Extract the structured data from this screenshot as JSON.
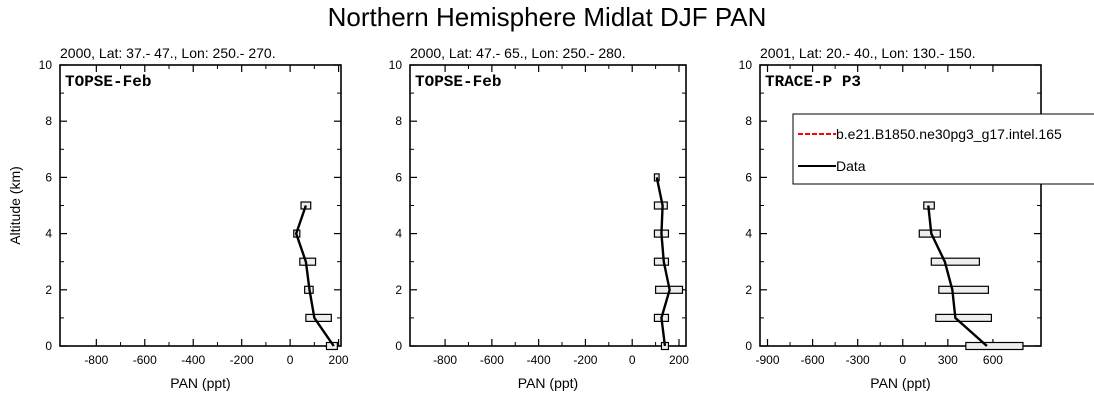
{
  "figure": {
    "title": "Northern Hemisphere Midlat DJF PAN"
  },
  "chart_data": [
    {
      "type": "line",
      "panel_title": "2000, Lat: 37.- 47., Lon: 250.- 270.",
      "campaign": "TOPSE-Feb",
      "xlabel": "PAN (ppt)",
      "ylabel": "Altitude (km)",
      "xlim": [
        -950,
        210
      ],
      "ylim": [
        0,
        10
      ],
      "xticks": [
        -800,
        -600,
        -400,
        -200,
        0,
        200
      ],
      "xtick_labels": [
        "-800",
        "-600",
        "-400",
        "-200",
        "0",
        "200"
      ],
      "yticks": [
        0,
        2,
        4,
        6,
        8,
        10
      ],
      "ytick_labels": [
        "0",
        "2",
        "4",
        "6",
        "8",
        "10"
      ],
      "series": [
        {
          "name": "Data",
          "color": "#000000",
          "x": [
            180,
            100,
            80,
            65,
            25,
            65
          ],
          "y": [
            0,
            1,
            2,
            3,
            4,
            5
          ],
          "box_low": [
            150,
            65,
            60,
            40,
            15,
            45
          ],
          "box_high": [
            195,
            170,
            95,
            105,
            40,
            85
          ]
        }
      ]
    },
    {
      "type": "line",
      "panel_title": "2000, Lat: 47.- 65., Lon: 250.- 280.",
      "campaign": "TOPSE-Feb",
      "xlabel": "PAN (ppt)",
      "ylabel": "",
      "xlim": [
        -950,
        230
      ],
      "ylim": [
        0,
        10
      ],
      "xticks": [
        -800,
        -600,
        -400,
        -200,
        0,
        200
      ],
      "xtick_labels": [
        "-800",
        "-600",
        "-400",
        "-200",
        "0",
        "200"
      ],
      "yticks": [
        0,
        2,
        4,
        6,
        8,
        10
      ],
      "ytick_labels": [
        "0",
        "2",
        "4",
        "6",
        "8",
        "10"
      ],
      "series": [
        {
          "name": "Data",
          "color": "#000000",
          "x": [
            140,
            125,
            160,
            135,
            125,
            130,
            105
          ],
          "y": [
            0,
            1,
            2,
            3,
            4,
            5,
            6
          ],
          "box_low": [
            125,
            95,
            100,
            95,
            95,
            95,
            95
          ],
          "box_high": [
            155,
            155,
            215,
            155,
            155,
            150,
            115
          ]
        }
      ]
    },
    {
      "type": "line",
      "panel_title": "2001, Lat: 20.- 40., Lon: 130.- 150.",
      "campaign": "TRACE-P P3",
      "xlabel": "PAN (ppt)",
      "ylabel": "",
      "xlim": [
        -950,
        920
      ],
      "ylim": [
        0,
        10
      ],
      "xticks": [
        -900,
        -600,
        -300,
        0,
        300,
        600
      ],
      "xtick_labels": [
        "-900",
        "-600",
        "-300",
        "0",
        "300",
        "600"
      ],
      "yticks": [
        0,
        2,
        4,
        6,
        8,
        10
      ],
      "ytick_labels": [
        "0",
        "2",
        "4",
        "6",
        "8",
        "10"
      ],
      "legend_position": "top-right",
      "legend": [
        {
          "label": "b.e21.B1850.ne30pg3_g17.intel.165",
          "color": "#ff0000",
          "dash": true
        },
        {
          "label": "Data",
          "color": "#000000",
          "dash": false
        }
      ],
      "series": [
        {
          "name": "Data",
          "color": "#000000",
          "x": [
            560,
            350,
            330,
            280,
            190,
            170
          ],
          "y": [
            0,
            1,
            2,
            3,
            4,
            5
          ],
          "box_low": [
            420,
            220,
            240,
            190,
            110,
            140
          ],
          "box_high": [
            800,
            590,
            570,
            510,
            250,
            210
          ]
        }
      ]
    }
  ]
}
